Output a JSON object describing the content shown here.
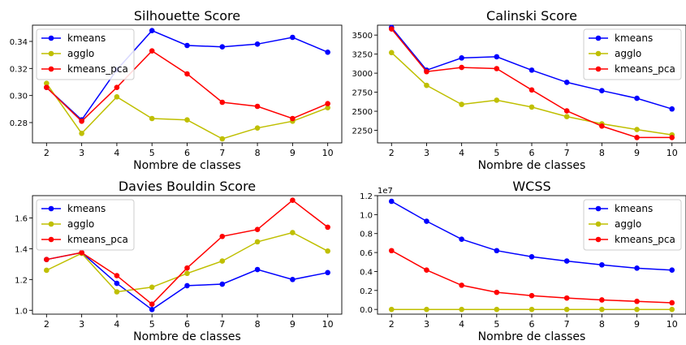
{
  "chart_data": [
    {
      "type": "line",
      "title": "Silhouette Score",
      "xlabel": "Nombre de classes",
      "ylabel": "",
      "x": [
        2,
        3,
        4,
        5,
        6,
        7,
        8,
        9,
        10
      ],
      "xticks": [
        2,
        3,
        4,
        5,
        6,
        7,
        8,
        9,
        10
      ],
      "xlim": [
        1.6,
        10.4
      ],
      "ylim": [
        0.265,
        0.352
      ],
      "yticks": [
        0.28,
        0.3,
        0.32,
        0.34
      ],
      "ytick_labels": [
        "0.28",
        "0.30",
        "0.32",
        "0.34"
      ],
      "exponent_label": "",
      "legend_placement": "upper-left",
      "grid": false,
      "series": [
        {
          "name": "kmeans",
          "color": "#0000ff",
          "values": [
            0.306,
            0.282,
            0.319,
            0.348,
            0.337,
            0.336,
            0.338,
            0.343,
            0.332
          ]
        },
        {
          "name": "agglo",
          "color": "#bfbf00",
          "values": [
            0.309,
            0.272,
            0.299,
            0.283,
            0.282,
            0.268,
            0.276,
            0.281,
            0.291
          ]
        },
        {
          "name": "kmeans_pca",
          "color": "#ff0000",
          "values": [
            0.306,
            0.281,
            0.306,
            0.333,
            0.316,
            0.295,
            0.292,
            0.283,
            0.294
          ]
        }
      ]
    },
    {
      "type": "line",
      "title": "Calinski Score",
      "xlabel": "Nombre de classes",
      "ylabel": "",
      "x": [
        2,
        3,
        4,
        5,
        6,
        7,
        8,
        9,
        10
      ],
      "xticks": [
        2,
        3,
        4,
        5,
        6,
        7,
        8,
        9,
        10
      ],
      "xlim": [
        1.6,
        10.4
      ],
      "ylim": [
        2085,
        3630
      ],
      "yticks": [
        2250,
        2500,
        2750,
        3000,
        3250,
        3500
      ],
      "ytick_labels": [
        "2250",
        "2500",
        "2750",
        "3000",
        "3250",
        "3500"
      ],
      "exponent_label": "",
      "legend_placement": "upper-right",
      "grid": false,
      "series": [
        {
          "name": "kmeans",
          "color": "#0000ff",
          "values": [
            3600,
            3040,
            3200,
            3215,
            3040,
            2880,
            2770,
            2670,
            2530
          ]
        },
        {
          "name": "agglo",
          "color": "#bfbf00",
          "values": [
            3270,
            2840,
            2590,
            2645,
            2555,
            2430,
            2335,
            2260,
            2190
          ]
        },
        {
          "name": "kmeans_pca",
          "color": "#ff0000",
          "values": [
            3580,
            3020,
            3075,
            3060,
            2780,
            2505,
            2305,
            2155,
            2155
          ]
        }
      ]
    },
    {
      "type": "line",
      "title": "Davies Bouldin Score",
      "xlabel": "Nombre de classes",
      "ylabel": "",
      "x": [
        2,
        3,
        4,
        5,
        6,
        7,
        8,
        9,
        10
      ],
      "xticks": [
        2,
        3,
        4,
        5,
        6,
        7,
        8,
        9,
        10
      ],
      "xlim": [
        1.6,
        10.4
      ],
      "ylim": [
        0.975,
        1.745
      ],
      "yticks": [
        1.0,
        1.2,
        1.4,
        1.6
      ],
      "ytick_labels": [
        "1.0",
        "1.2",
        "1.4",
        "1.6"
      ],
      "exponent_label": "",
      "legend_placement": "upper-left",
      "grid": false,
      "series": [
        {
          "name": "kmeans",
          "color": "#0000ff",
          "values": [
            1.33,
            1.375,
            1.175,
            1.005,
            1.16,
            1.17,
            1.265,
            1.2,
            1.245
          ]
        },
        {
          "name": "agglo",
          "color": "#bfbf00",
          "values": [
            1.26,
            1.37,
            1.12,
            1.15,
            1.24,
            1.32,
            1.445,
            1.505,
            1.385
          ]
        },
        {
          "name": "kmeans_pca",
          "color": "#ff0000",
          "values": [
            1.33,
            1.375,
            1.225,
            1.04,
            1.275,
            1.48,
            1.525,
            1.715,
            1.54
          ]
        }
      ]
    },
    {
      "type": "line",
      "title": "WCSS",
      "xlabel": "Nombre de classes",
      "ylabel": "",
      "x": [
        2,
        3,
        4,
        5,
        6,
        7,
        8,
        9,
        10
      ],
      "xticks": [
        2,
        3,
        4,
        5,
        6,
        7,
        8,
        9,
        10
      ],
      "xlim": [
        1.6,
        10.4
      ],
      "ylim": [
        -0.05,
        1.2
      ],
      "yticks": [
        0.0,
        0.2,
        0.4,
        0.6,
        0.8,
        1.0,
        1.2
      ],
      "ytick_labels": [
        "0.0",
        "0.2",
        "0.4",
        "0.6",
        "0.8",
        "1.0",
        "1.2"
      ],
      "exponent_label": "1e7",
      "legend_placement": "upper-right",
      "grid": false,
      "series": [
        {
          "name": "kmeans",
          "color": "#0000ff",
          "values": [
            1.14,
            0.93,
            0.74,
            0.62,
            0.555,
            0.51,
            0.47,
            0.435,
            0.415
          ]
        },
        {
          "name": "agglo",
          "color": "#bfbf00",
          "values": [
            0.0,
            0.0,
            0.0,
            0.0,
            0.0,
            0.0,
            0.0,
            0.0,
            0.0
          ]
        },
        {
          "name": "kmeans_pca",
          "color": "#ff0000",
          "values": [
            0.62,
            0.415,
            0.255,
            0.18,
            0.145,
            0.12,
            0.1,
            0.085,
            0.07
          ]
        }
      ]
    }
  ]
}
